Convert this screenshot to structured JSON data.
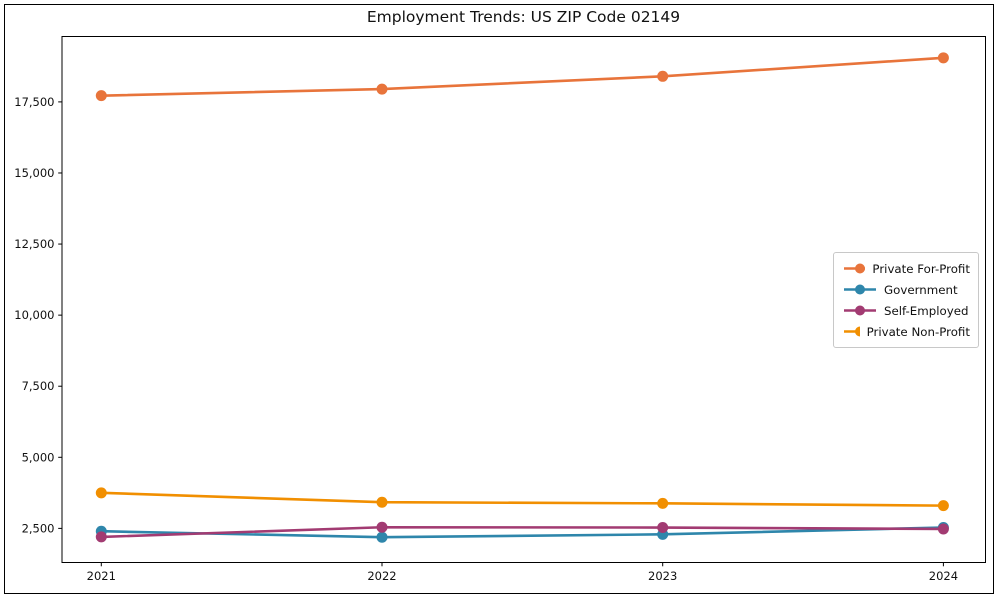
{
  "window": {
    "background": "#ffffff",
    "frame_color": "#000000"
  },
  "chart_data": {
    "type": "line",
    "title": "Employment Trends: US ZIP Code 02149",
    "xlabel": "",
    "ylabel": "",
    "x": [
      2021,
      2022,
      2023,
      2024
    ],
    "x_tick_labels": [
      "2021",
      "2022",
      "2023",
      "2024"
    ],
    "series": [
      {
        "name": "Private For-Profit",
        "color": "#E8743B",
        "values": [
          17720,
          17950,
          18400,
          19050
        ]
      },
      {
        "name": "Government",
        "color": "#2E86AB",
        "values": [
          2400,
          2190,
          2290,
          2530
        ]
      },
      {
        "name": "Self-Employed",
        "color": "#A23B72",
        "values": [
          2200,
          2540,
          2530,
          2480
        ]
      },
      {
        "name": "Private Non-Profit",
        "color": "#F18F01",
        "values": [
          3750,
          3420,
          3380,
          3300
        ]
      }
    ],
    "xlim": [
      2020.86,
      2024.15
    ],
    "ylim": [
      1300,
      19800
    ],
    "yticks": [
      2500,
      5000,
      7500,
      10000,
      12500,
      15000,
      17500
    ],
    "ytick_labels": [
      "2,500",
      "5,000",
      "7,500",
      "10,000",
      "12,500",
      "15,000",
      "17,500"
    ],
    "grid": false,
    "marker": "o",
    "line_width": 2.6,
    "marker_radius": 5.5,
    "axis_color": "#000000",
    "text_color": "#111111",
    "legend": {
      "position": "center right",
      "items": [
        "Private For-Profit",
        "Government",
        "Self-Employed",
        "Private Non-Profit"
      ]
    }
  }
}
